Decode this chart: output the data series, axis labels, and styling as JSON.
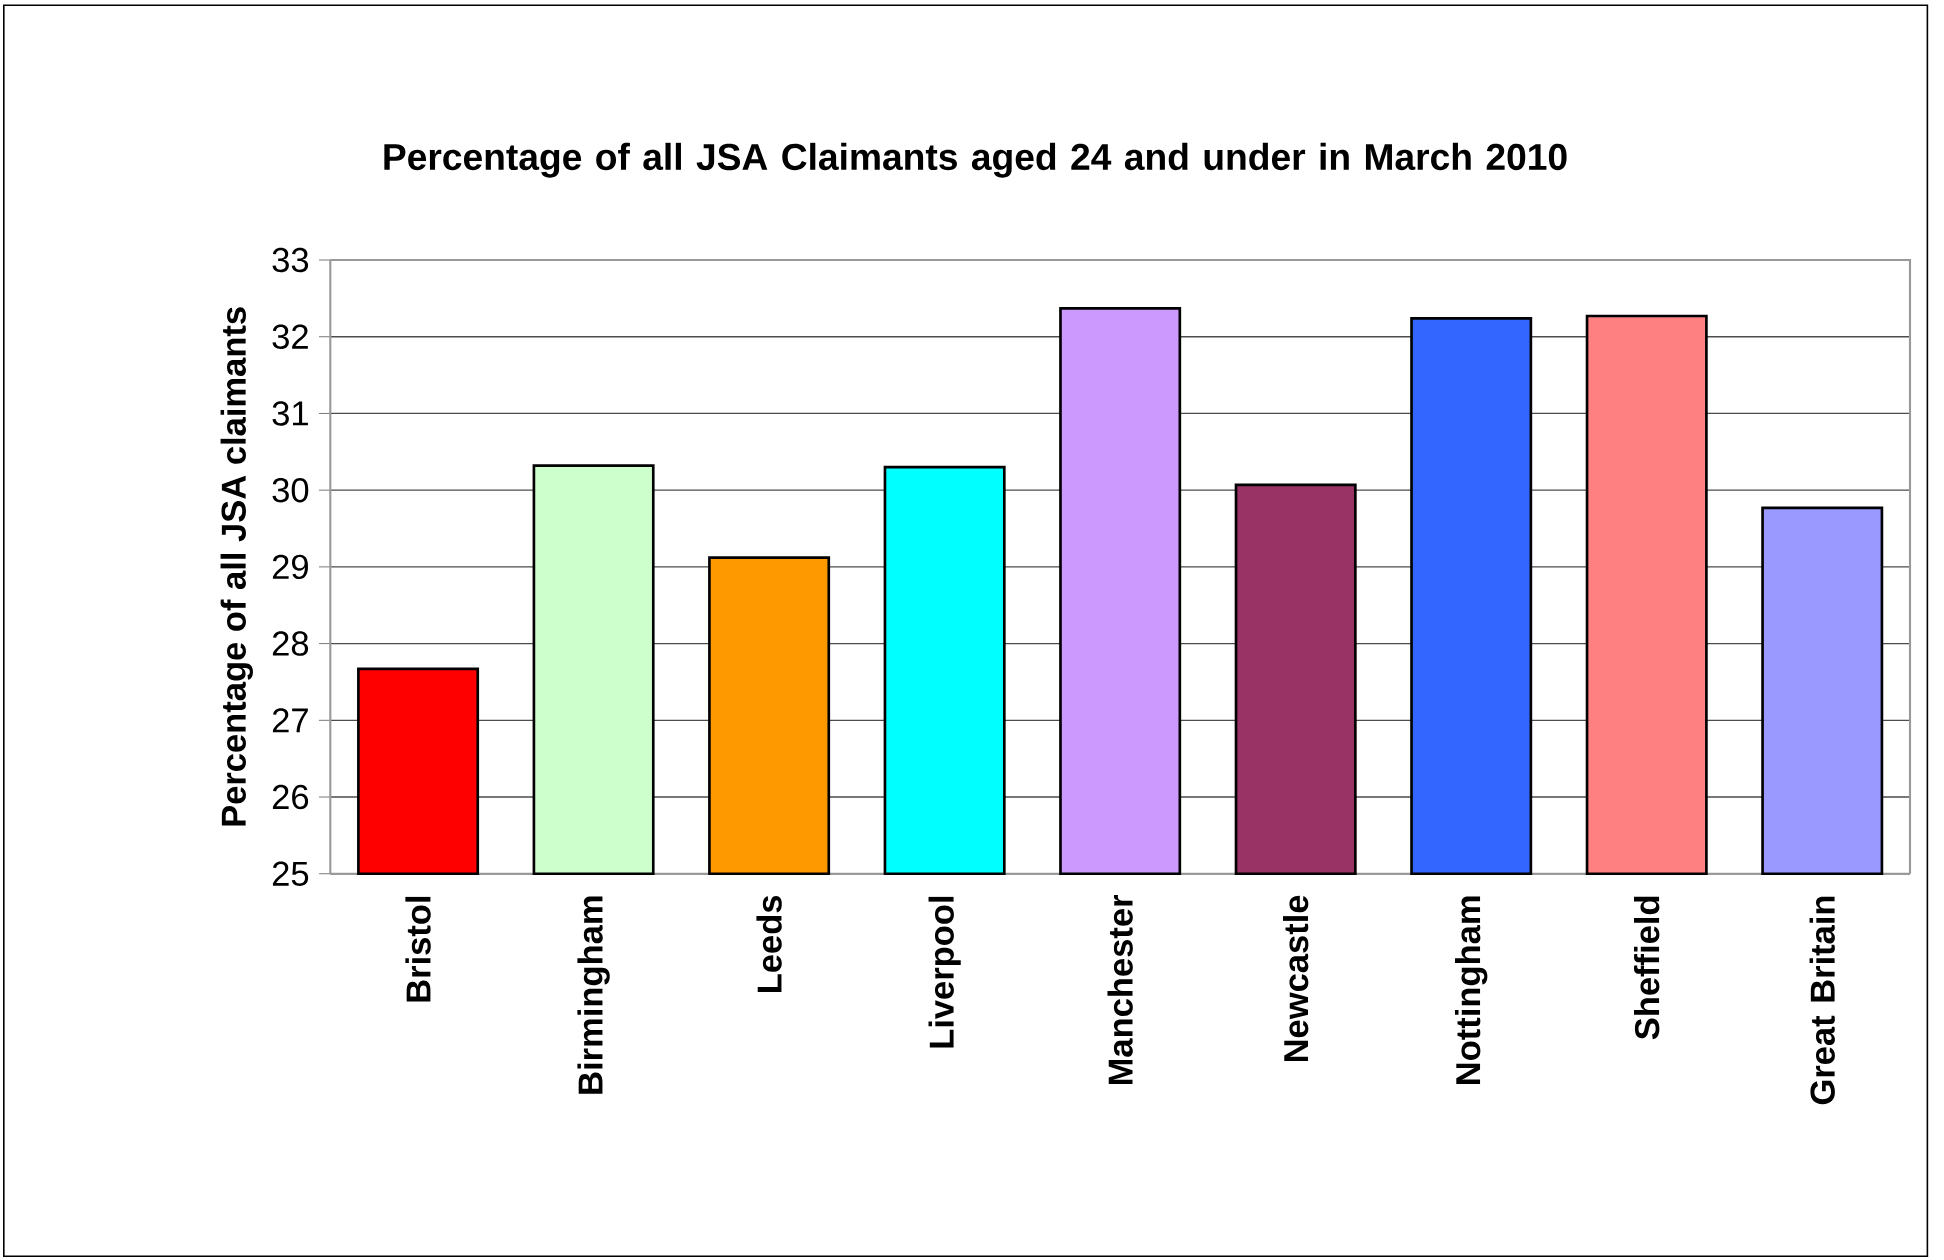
{
  "chart_data": {
    "type": "bar",
    "title": "Percentage of all JSA Claimants aged 24 and under in March 2010",
    "ylabel": "Percentage of all JSA claimants",
    "categories": [
      "Bristol",
      "Birmingham",
      "Leeds",
      "Liverpool",
      "Manchester",
      "Newcastle",
      "Nottingham",
      "Sheffield",
      "Great Britain"
    ],
    "values": [
      27.67,
      30.32,
      29.12,
      30.3,
      32.37,
      30.07,
      32.24,
      32.27,
      29.77
    ],
    "colors": [
      "#ff0000",
      "#ccffcc",
      "#ff9900",
      "#00ffff",
      "#cc99ff",
      "#993366",
      "#3366ff",
      "#ff8080",
      "#9999ff"
    ],
    "ylim": [
      25,
      33
    ],
    "yticks": [
      25,
      26,
      27,
      28,
      29,
      30,
      31,
      32,
      33
    ],
    "grid": "y"
  }
}
